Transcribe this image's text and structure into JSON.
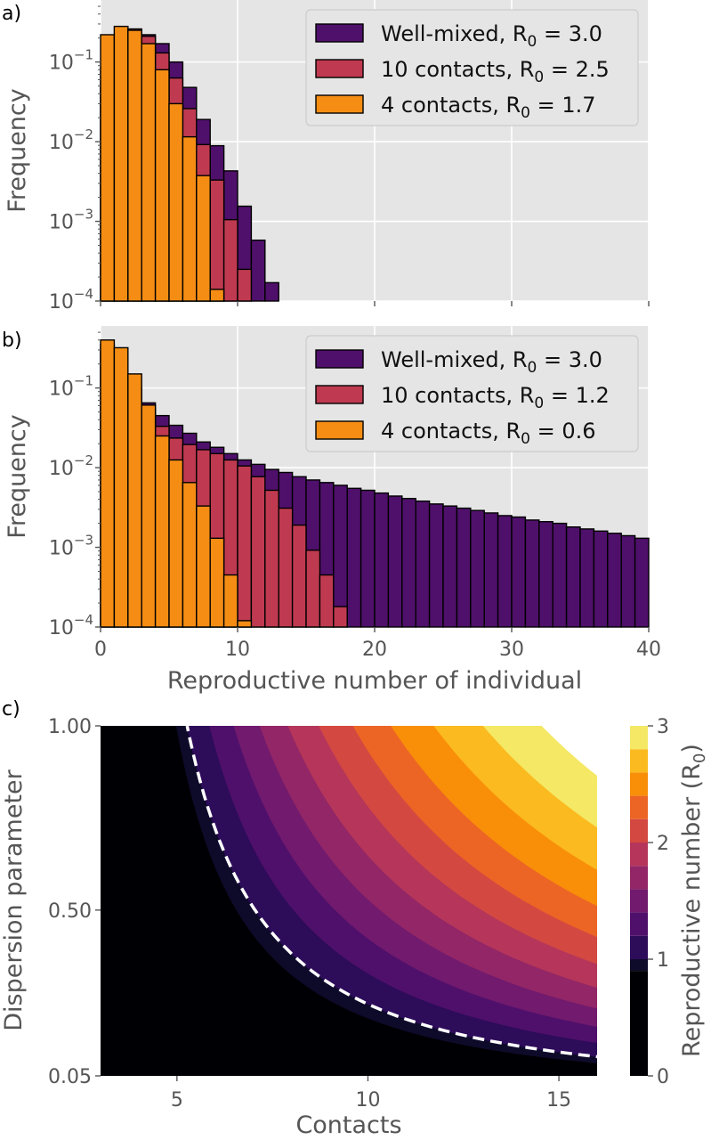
{
  "figure": {
    "colors": {
      "background": "#e5e5e5",
      "grid": "#ffffff",
      "edge": "#000000",
      "well_mixed": "#4f106b",
      "contacts_10": "#bf3a50",
      "contacts_4": "#f58d14"
    }
  },
  "chart_data": [
    {
      "panel": "a)",
      "type": "bar",
      "ylabel": "Frequency",
      "xlabel": "",
      "yscale": "log",
      "ylim": [
        0.0001,
        0.6
      ],
      "xlim": [
        0,
        40
      ],
      "y_ticks": [
        0.0001,
        0.001,
        0.01,
        0.1
      ],
      "y_tick_labels": [
        {
          "base": "10",
          "exp": "−4"
        },
        {
          "base": "10",
          "exp": "−3"
        },
        {
          "base": "10",
          "exp": "−2"
        },
        {
          "base": "10",
          "exp": "−1"
        }
      ],
      "x_ticks": [
        0,
        10,
        20,
        30,
        40
      ],
      "grid": true,
      "legend_position": "top-right",
      "bin_width": 1,
      "series": [
        {
          "name": "Well-mixed",
          "r0": "3.0",
          "color_key": "well_mixed",
          "x": [
            0,
            1,
            2,
            3,
            4,
            5,
            6,
            7,
            8,
            9,
            10,
            11,
            12
          ],
          "values": [
            0.052,
            0.15,
            0.22,
            0.22,
            0.17,
            0.1,
            0.048,
            0.019,
            0.0089,
            0.0043,
            0.00155,
            0.00058,
            0.00017
          ]
        },
        {
          "name": "10 contacts",
          "r0": "2.5",
          "color_key": "contacts_10",
          "x": [
            0,
            1,
            2,
            3,
            4,
            5,
            6,
            7,
            8,
            9,
            10
          ],
          "values": [
            0.085,
            0.21,
            0.26,
            0.21,
            0.13,
            0.063,
            0.026,
            0.0092,
            0.0033,
            0.00105,
            0.00025
          ]
        },
        {
          "name": "4 contacts",
          "r0": "1.7",
          "color_key": "contacts_4",
          "x": [
            0,
            1,
            2,
            3,
            4,
            5,
            6,
            7,
            8
          ],
          "values": [
            0.22,
            0.28,
            0.25,
            0.17,
            0.08,
            0.03,
            0.0115,
            0.00375,
            0.00014
          ]
        }
      ]
    },
    {
      "panel": "b)",
      "type": "bar",
      "ylabel": "Frequency",
      "xlabel": "Reproductive number of individual",
      "yscale": "log",
      "ylim": [
        0.0001,
        0.6
      ],
      "xlim": [
        0,
        40
      ],
      "y_ticks": [
        0.0001,
        0.001,
        0.01,
        0.1
      ],
      "y_tick_labels": [
        {
          "base": "10",
          "exp": "−4"
        },
        {
          "base": "10",
          "exp": "−3"
        },
        {
          "base": "10",
          "exp": "−2"
        },
        {
          "base": "10",
          "exp": "−1"
        }
      ],
      "x_ticks": [
        0,
        10,
        20,
        30,
        40
      ],
      "x_tick_labels": [
        "0",
        "10",
        "20",
        "30",
        "40"
      ],
      "grid": true,
      "legend_position": "top-right",
      "bin_width": 1,
      "series": [
        {
          "name": "Well-mixed",
          "r0": "3.0",
          "color_key": "well_mixed",
          "x": [
            0,
            1,
            2,
            3,
            4,
            5,
            6,
            7,
            8,
            9,
            10,
            11,
            12,
            13,
            14,
            15,
            16,
            17,
            18,
            19,
            20,
            21,
            22,
            23,
            24,
            25,
            26,
            27,
            28,
            29,
            30,
            31,
            32,
            33,
            34,
            35,
            36,
            37,
            38,
            39
          ],
          "values": [
            0.3,
            0.17,
            0.1,
            0.065,
            0.045,
            0.034,
            0.027,
            0.021,
            0.018,
            0.015,
            0.0125,
            0.011,
            0.0095,
            0.0087,
            0.0077,
            0.007,
            0.0065,
            0.006,
            0.0055,
            0.0052,
            0.0048,
            0.0044,
            0.0041,
            0.0038,
            0.0035,
            0.0033,
            0.0031,
            0.0029,
            0.0027,
            0.0025,
            0.0024,
            0.0022,
            0.0021,
            0.002,
            0.0018,
            0.0017,
            0.0016,
            0.0015,
            0.0014,
            0.0013
          ]
        },
        {
          "name": "10 contacts",
          "r0": "1.2",
          "color_key": "contacts_10",
          "x": [
            0,
            1,
            2,
            3,
            4,
            5,
            6,
            7,
            8,
            9,
            10,
            11,
            12,
            13,
            14,
            15,
            16,
            17
          ],
          "values": [
            0.35,
            0.2,
            0.1,
            0.055,
            0.033,
            0.0235,
            0.0195,
            0.0168,
            0.015,
            0.0125,
            0.0105,
            0.0077,
            0.0052,
            0.0031,
            0.0019,
            0.00092,
            0.00045,
            0.00018
          ]
        },
        {
          "name": "4 contacts",
          "r0": "0.6",
          "color_key": "contacts_4",
          "x": [
            0,
            1,
            2,
            3,
            4,
            5,
            6,
            7,
            8,
            9,
            10
          ],
          "values": [
            0.4,
            0.32,
            0.15,
            0.061,
            0.025,
            0.0125,
            0.0065,
            0.0033,
            0.0013,
            0.00045,
            0.00012
          ]
        }
      ]
    },
    {
      "panel": "c)",
      "type": "heatmap",
      "subtype": "filled-contour",
      "xlabel": "Contacts",
      "ylabel": "Dispersion parameter",
      "xlim": [
        3,
        16
      ],
      "ylim": [
        0.05,
        1.0
      ],
      "x_ticks": [
        5,
        10,
        15
      ],
      "x_tick_labels": [
        "5",
        "10",
        "15"
      ],
      "y_ticks": [
        0.05,
        0.5,
        1.0
      ],
      "y_tick_labels": [
        "0.05",
        "0.50",
        "1.00"
      ],
      "colorbar": {
        "label": "Reproductive number (R",
        "label_sub": "0",
        "label_close": ")",
        "min": 0,
        "max": 3,
        "levels": [
          0,
          0.9,
          1.0,
          1.2,
          1.4,
          1.6,
          1.8,
          2.0,
          2.2,
          2.4,
          2.6,
          2.8,
          3.0
        ],
        "colors": [
          "#000004",
          "#0e0a2a",
          "#2d0c5a",
          "#4f106b",
          "#711a6e",
          "#932667",
          "#b5365a",
          "#d44842",
          "#ec6525",
          "#f98e09",
          "#fbba1f",
          "#f4e865"
        ],
        "ticks": [
          0,
          1,
          2,
          3
        ],
        "tick_labels": [
          "0",
          "1",
          "2",
          "3"
        ]
      },
      "threshold_line": {
        "r0": 1.0,
        "style": "dashed",
        "color": "#ffffff"
      }
    }
  ]
}
